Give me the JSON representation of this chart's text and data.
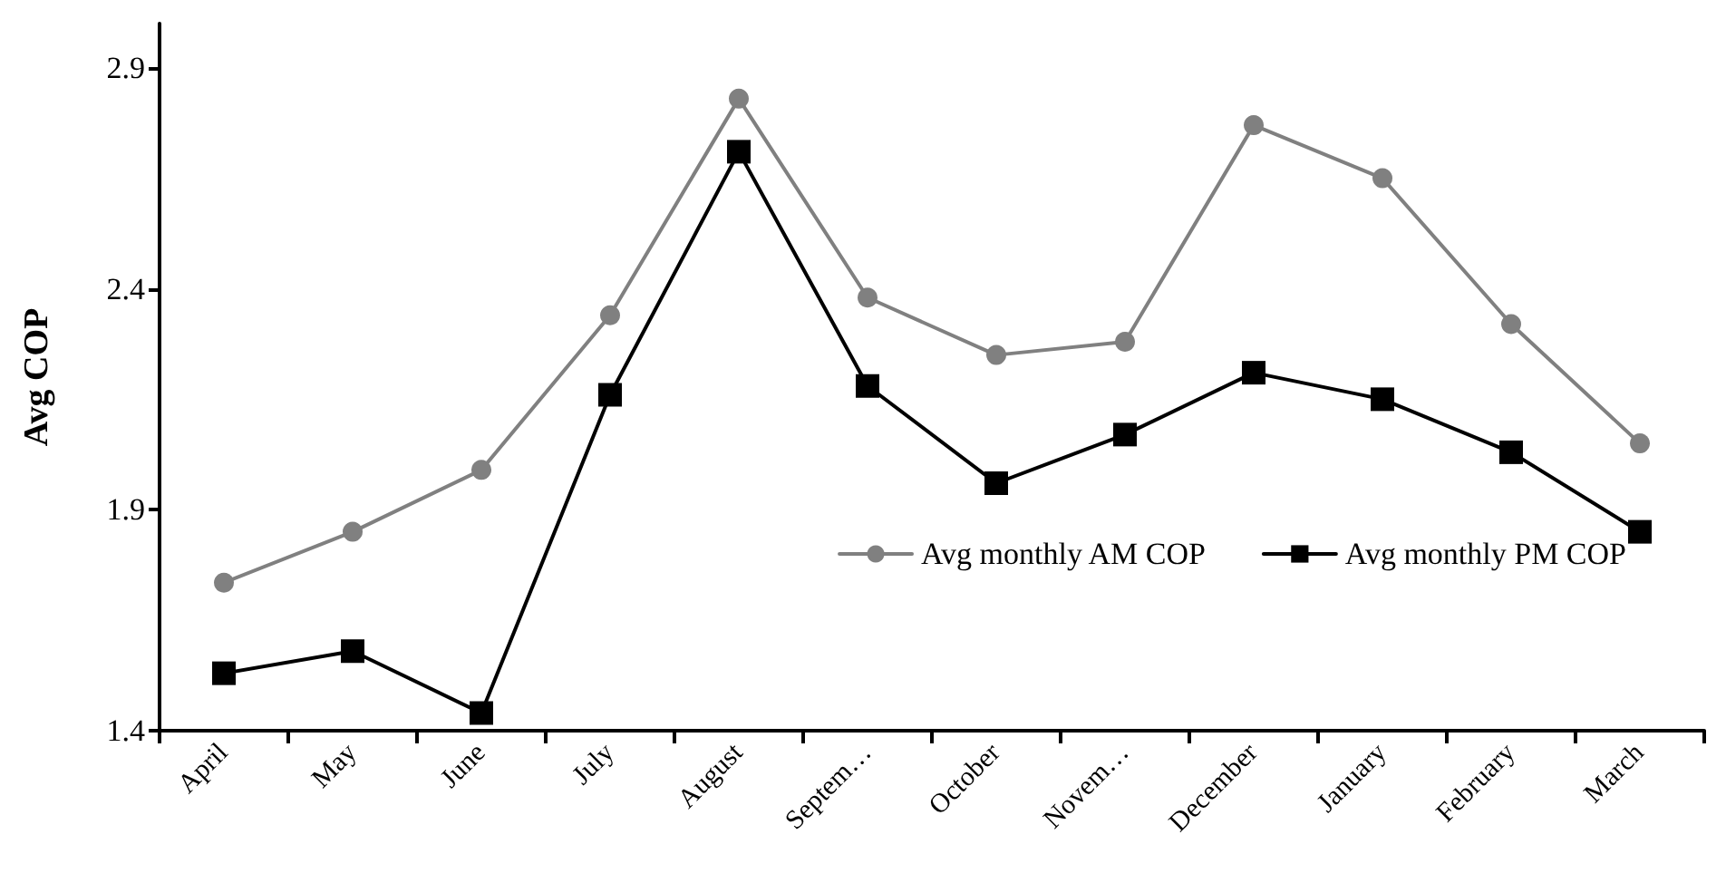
{
  "chart_data": {
    "type": "line",
    "ylabel": "Avg COP",
    "categories": [
      "April",
      "May",
      "June",
      "July",
      "August",
      "Septem…",
      "October",
      "Novem…",
      "December",
      "January",
      "February",
      "March"
    ],
    "series": [
      {
        "name": "Avg monthly AM COP",
        "color": "#808080",
        "marker": "circle",
        "values": [
          1.735,
          1.85,
          1.99,
          2.34,
          2.83,
          2.38,
          2.25,
          2.28,
          2.77,
          2.65,
          2.32,
          2.05
        ]
      },
      {
        "name": "Avg monthly PM COP",
        "color": "#000000",
        "marker": "square",
        "values": [
          1.53,
          1.58,
          1.44,
          2.16,
          2.71,
          2.18,
          1.96,
          2.07,
          2.21,
          2.15,
          2.03,
          1.85
        ]
      }
    ],
    "ylim": [
      1.4,
      3.0
    ],
    "yticks": [
      1.4,
      1.9,
      2.4,
      2.9
    ],
    "grid": false,
    "legend": "right",
    "line_style": "solid"
  }
}
